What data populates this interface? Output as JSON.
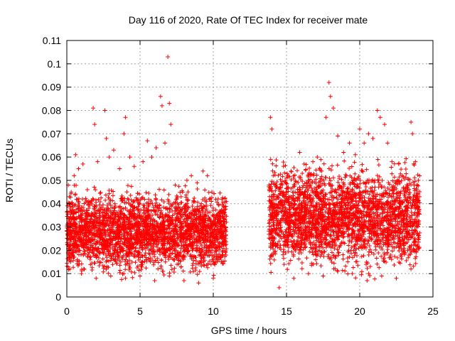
{
  "chart_data": {
    "type": "scatter",
    "title": "Day 116 of 2020, Rate Of TEC Index for receiver mate",
    "xlabel": "GPS time / hours",
    "ylabel": "ROTI / TECUs",
    "xlim": [
      0,
      25
    ],
    "ylim": [
      0,
      0.11
    ],
    "xticks": [
      0,
      5,
      10,
      15,
      20,
      25
    ],
    "xtick_labels": [
      "0",
      "5",
      "10",
      "15",
      "20",
      "25"
    ],
    "yticks": [
      0,
      0.01,
      0.02,
      0.03,
      0.04,
      0.05,
      0.06,
      0.07,
      0.08,
      0.09,
      0.1,
      0.11
    ],
    "ytick_labels": [
      "0",
      "0.01",
      "0.02",
      "0.03",
      "0.04",
      "0.05",
      "0.06",
      "0.07",
      "0.08",
      "0.09",
      "0.1",
      "0.11"
    ],
    "grid": true,
    "marker": "+",
    "series": [
      {
        "name": "ROTI",
        "color": "#ff0000",
        "points": [
          [
            0.1,
            0.048
          ],
          [
            0.3,
            0.045
          ],
          [
            0.5,
            0.052
          ],
          [
            0.6,
            0.061
          ],
          [
            0.8,
            0.055
          ],
          [
            1.1,
            0.057
          ],
          [
            1.4,
            0.046
          ],
          [
            1.8,
            0.081
          ],
          [
            1.9,
            0.074
          ],
          [
            2.1,
            0.058
          ],
          [
            2.6,
            0.08
          ],
          [
            2.7,
            0.068
          ],
          [
            2.9,
            0.06
          ],
          [
            3.2,
            0.063
          ],
          [
            3.6,
            0.055
          ],
          [
            3.9,
            0.07
          ],
          [
            4.0,
            0.077
          ],
          [
            4.3,
            0.06
          ],
          [
            4.6,
            0.056
          ],
          [
            5.2,
            0.058
          ],
          [
            5.5,
            0.067
          ],
          [
            5.8,
            0.06
          ],
          [
            6.1,
            0.064
          ],
          [
            6.4,
            0.086
          ],
          [
            6.5,
            0.082
          ],
          [
            6.7,
            0.066
          ],
          [
            6.9,
            0.103
          ],
          [
            7.0,
            0.083
          ],
          [
            7.1,
            0.074
          ],
          [
            7.4,
            0.048
          ],
          [
            7.8,
            0.043
          ],
          [
            8.2,
            0.05
          ],
          [
            8.5,
            0.052
          ],
          [
            8.9,
            0.049
          ],
          [
            9.3,
            0.054
          ],
          [
            9.6,
            0.052
          ],
          [
            9.9,
            0.045
          ],
          [
            10.3,
            0.035
          ],
          [
            10.7,
            0.039
          ],
          [
            13.9,
            0.077
          ],
          [
            14.0,
            0.072
          ],
          [
            14.1,
            0.044
          ],
          [
            14.3,
            0.037
          ],
          [
            14.6,
            0.047
          ],
          [
            15.0,
            0.051
          ],
          [
            15.5,
            0.045
          ],
          [
            15.9,
            0.062
          ],
          [
            16.2,
            0.057
          ],
          [
            16.5,
            0.05
          ],
          [
            16.8,
            0.058
          ],
          [
            17.1,
            0.06
          ],
          [
            17.4,
            0.054
          ],
          [
            17.7,
            0.077
          ],
          [
            17.9,
            0.092
          ],
          [
            18.0,
            0.086
          ],
          [
            18.2,
            0.081
          ],
          [
            18.5,
            0.069
          ],
          [
            18.9,
            0.062
          ],
          [
            19.3,
            0.066
          ],
          [
            19.7,
            0.061
          ],
          [
            20.0,
            0.072
          ],
          [
            20.3,
            0.066
          ],
          [
            20.6,
            0.07
          ],
          [
            20.9,
            0.068
          ],
          [
            21.2,
            0.08
          ],
          [
            21.4,
            0.077
          ],
          [
            21.7,
            0.074
          ],
          [
            21.9,
            0.066
          ],
          [
            22.2,
            0.058
          ],
          [
            22.6,
            0.05
          ],
          [
            22.9,
            0.052
          ],
          [
            23.2,
            0.045
          ],
          [
            23.5,
            0.075
          ],
          [
            23.6,
            0.07
          ],
          [
            23.8,
            0.058
          ],
          [
            24.0,
            0.05
          ],
          [
            0.2,
            0.012
          ],
          [
            1.0,
            0.01
          ],
          [
            2.0,
            0.008
          ],
          [
            3.0,
            0.009
          ],
          [
            4.0,
            0.008
          ],
          [
            5.0,
            0.009
          ],
          [
            6.0,
            0.007
          ],
          [
            7.0,
            0.009
          ],
          [
            8.0,
            0.007
          ],
          [
            9.0,
            0.006
          ],
          [
            10.0,
            0.008
          ],
          [
            14.5,
            0.004
          ],
          [
            15.5,
            0.008
          ],
          [
            16.5,
            0.01
          ],
          [
            17.5,
            0.009
          ],
          [
            18.5,
            0.011
          ],
          [
            19.5,
            0.01
          ],
          [
            20.5,
            0.007
          ],
          [
            21.5,
            0.009
          ],
          [
            22.5,
            0.008
          ],
          [
            23.5,
            0.012
          ],
          [
            1.5,
            0.025
          ],
          [
            3.5,
            0.03
          ],
          [
            5.5,
            0.022
          ],
          [
            7.5,
            0.028
          ],
          [
            9.5,
            0.02
          ],
          [
            15.0,
            0.028
          ],
          [
            17.0,
            0.03
          ],
          [
            19.0,
            0.032
          ],
          [
            21.0,
            0.027
          ],
          [
            23.0,
            0.022
          ]
        ]
      }
    ],
    "segments": [
      {
        "xstart": 0.0,
        "xend": 10.9,
        "fill_min": 0.006,
        "fill_max": 0.048
      },
      {
        "xstart": 13.8,
        "xend": 24.1,
        "fill_min": 0.006,
        "fill_max": 0.06
      }
    ]
  }
}
